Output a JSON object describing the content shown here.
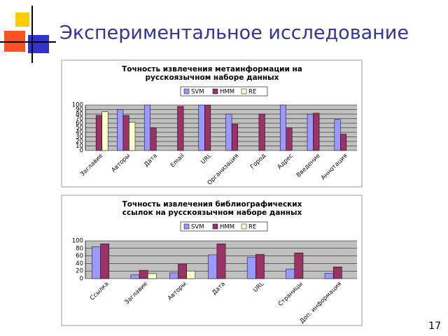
{
  "slide": {
    "title": "Экспериментальное исследование",
    "page_number": "17"
  },
  "chart_data": [
    {
      "type": "bar",
      "title": [
        "Точность извлечения метаинформации на",
        "русскоязычном наборе данных"
      ],
      "categories": [
        "Заглавие",
        "Авторы",
        "Дата",
        "Email",
        "URL",
        "Организация",
        "Город",
        "Адрес",
        "Введение",
        "Аннотация"
      ],
      "series": [
        {
          "name": "SVM",
          "color": "#9999ff",
          "values": [
            null,
            90,
            100,
            null,
            100,
            80,
            null,
            100,
            80,
            68
          ]
        },
        {
          "name": "HMM",
          "color": "#993366",
          "values": [
            77,
            77,
            50,
            97,
            100,
            58,
            80,
            50,
            82,
            36
          ]
        },
        {
          "name": "RE",
          "color": "#ffffcc",
          "values": [
            85,
            62,
            null,
            null,
            null,
            null,
            null,
            null,
            null,
            null
          ]
        }
      ],
      "ylim": [
        0,
        100
      ],
      "yticks": [
        0,
        10,
        20,
        30,
        40,
        50,
        60,
        70,
        80,
        90,
        100
      ],
      "grid": true
    },
    {
      "type": "bar",
      "title": [
        "Точность извлечения библиографических",
        "ссылок на русскоязычном наборе данных"
      ],
      "categories": [
        "Ссылка",
        "Заглавие",
        "Авторы",
        "Дата",
        "URL",
        "Страницы",
        "Доп. информация"
      ],
      "series": [
        {
          "name": "SVM",
          "color": "#9999ff",
          "values": [
            84,
            10,
            15,
            63,
            56,
            25,
            14
          ]
        },
        {
          "name": "HMM",
          "color": "#993366",
          "values": [
            92,
            22,
            38,
            92,
            64,
            68,
            31
          ]
        },
        {
          "name": "RE",
          "color": "#ffffcc",
          "values": [
            null,
            13,
            20,
            null,
            null,
            null,
            null
          ]
        }
      ],
      "ylim": [
        0,
        100
      ],
      "yticks": [
        0,
        20,
        40,
        60,
        80,
        100
      ],
      "grid": true
    }
  ]
}
